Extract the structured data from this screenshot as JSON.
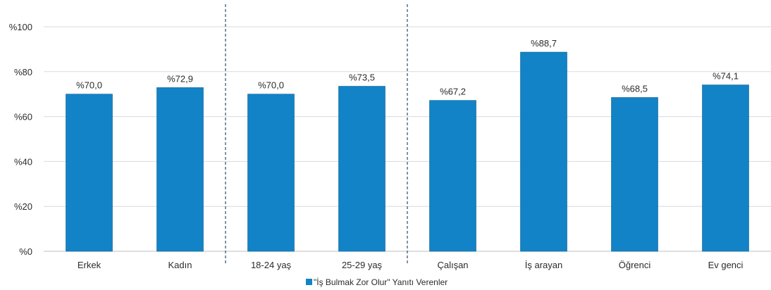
{
  "chart_data": {
    "type": "bar",
    "categories": [
      "Erkek",
      "Kadın",
      "18-24 yaş",
      "25-29 yaş",
      "Çalışan",
      "İş arayan",
      "Öğrenci",
      "Ev genci"
    ],
    "series": [
      {
        "name": "\"İş Bulmak Zor Olur\" Yanıtı Verenler",
        "values": [
          70.0,
          72.9,
          70.0,
          73.5,
          67.2,
          88.7,
          68.5,
          74.1
        ],
        "labels": [
          "%70,0",
          "%72,9",
          "%70,0",
          "%73,5",
          "%67,2",
          "%88,7",
          "%68,5",
          "%74,1"
        ],
        "color": "#1283c6"
      }
    ],
    "ylim": [
      0,
      100
    ],
    "yticks": [
      0,
      20,
      40,
      60,
      80,
      100
    ],
    "ytick_labels": [
      "%0",
      "%20",
      "%40",
      "%60",
      "%80",
      "%100"
    ],
    "group_separators_after_index": [
      1,
      3
    ],
    "grid": true,
    "legend": "bottom-center",
    "title": "",
    "xlabel": "",
    "ylabel": ""
  }
}
